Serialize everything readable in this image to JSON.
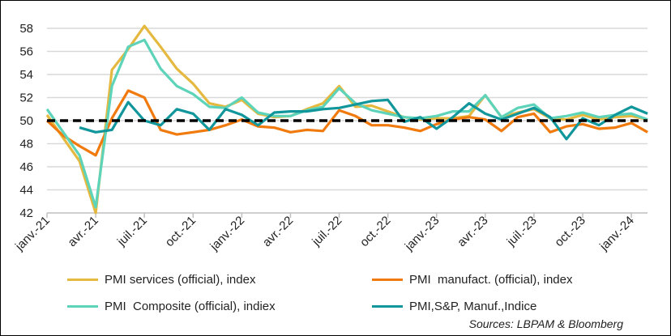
{
  "chart_data": {
    "type": "line",
    "title": "",
    "xlabel": "",
    "ylabel": "",
    "ylim": [
      42,
      58
    ],
    "yticks": [
      "42",
      "44",
      "46",
      "48",
      "50",
      "52",
      "54",
      "56",
      "58"
    ],
    "grid": true,
    "x_tick_labels": [
      "janv.-21",
      "avr.-21",
      "juil.-21",
      "oct.-21",
      "janv.-22",
      "avr.-22",
      "juil.-22",
      "oct.-22",
      "janv.-23",
      "avr.-23",
      "juil.-23",
      "oct.-23",
      "janv.-24"
    ],
    "x_start": "2021-01",
    "x_end": "2024-02",
    "reference_line": {
      "value": 50,
      "style": "dashed",
      "color": "#000000"
    },
    "legend_placement": "bottom",
    "series": [
      {
        "name": "PMI services (official), index",
        "color": "#E5B940",
        "values": [
          50.5,
          48.5,
          46.5,
          42,
          54.4,
          56.2,
          58.2,
          56.4,
          54.5,
          53.2,
          51.5,
          51.2,
          51.8,
          50.6,
          50.3,
          50.4,
          51,
          51.5,
          53,
          51.2,
          51.3,
          50.8,
          50.3,
          50.1,
          50.2,
          50.2,
          50.4,
          52.2,
          50.3,
          50.7,
          51,
          50.2,
          50.1,
          50.5,
          50.1,
          50.3,
          50.4,
          50.1
        ]
      },
      {
        "name": "PMI  manufact. (official), index",
        "color": "#F07A0E",
        "values": [
          50,
          48.7,
          47.8,
          47,
          50.2,
          52.6,
          52,
          49.2,
          48.8,
          49,
          49.2,
          49.6,
          50.1,
          49.5,
          49.4,
          49,
          49.2,
          49.1,
          50.9,
          50.4,
          49.6,
          49.6,
          49.4,
          49.1,
          49.7,
          50.1,
          50.3,
          50.1,
          49.1,
          50.3,
          50.6,
          49,
          49.5,
          49.7,
          49.3,
          49.4,
          49.8,
          49
        ]
      },
      {
        "name": "PMI  Composite (official), indiex",
        "color": "#5DD3B9",
        "values": [
          51,
          49,
          47,
          42.5,
          53,
          56.4,
          57,
          54.5,
          53,
          52.3,
          51.2,
          51.1,
          52,
          50.7,
          50.4,
          50.4,
          50.9,
          51.2,
          52.8,
          51.5,
          50.9,
          50.6,
          50.3,
          50.2,
          50.4,
          50.8,
          50.8,
          52.2,
          50.3,
          51.1,
          51.4,
          50.2,
          50.4,
          50.7,
          50.3,
          50.5,
          50.6,
          50.1
        ]
      },
      {
        "name": "PMI,S&P, Manuf.,Indice",
        "color": "#11969B",
        "values": [
          null,
          null,
          49.4,
          49,
          49.2,
          51.6,
          50,
          49.6,
          51,
          50.6,
          49.2,
          51,
          50.5,
          49.6,
          50.7,
          50.8,
          50.8,
          51,
          51.1,
          51.4,
          51.7,
          51.8,
          49.9,
          50.3,
          49.3,
          50.3,
          51.5,
          50.6,
          50.1,
          50.6,
          51.1,
          50.3,
          48.4,
          50.2,
          49.6,
          50.5,
          51.2,
          50.6
        ]
      }
    ],
    "source": "Sources: LBPAM & Bloomberg"
  }
}
